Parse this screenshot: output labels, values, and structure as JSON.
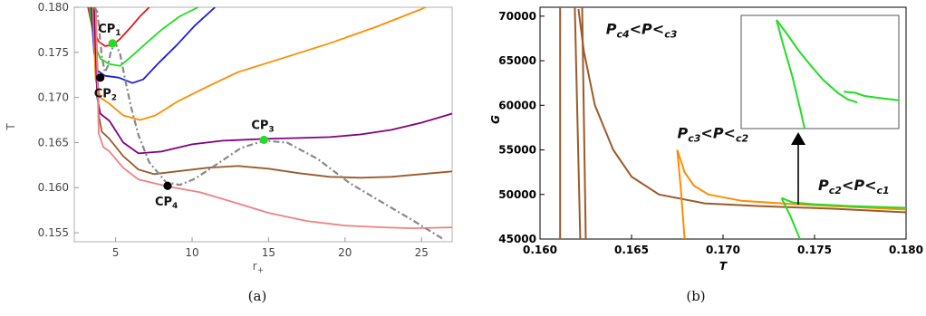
{
  "chart_data": [
    {
      "type": "line",
      "caption": "(a)",
      "xlabel": "r",
      "xlabel_sub": "+",
      "ylabel": "T",
      "xlim": [
        2.3,
        27
      ],
      "ylim": [
        0.154,
        0.18
      ],
      "xticks": [
        "5",
        "10",
        "15",
        "20",
        "25"
      ],
      "yticks": [
        "0.155",
        "0.160",
        "0.165",
        "0.170",
        "0.175",
        "0.180"
      ],
      "series": [
        {
          "color": "#e31a1c",
          "points": [
            [
              3.2,
              0.18
            ],
            [
              3.5,
              0.1775
            ],
            [
              3.9,
              0.1762
            ],
            [
              4.3,
              0.1757
            ],
            [
              4.8,
              0.1758
            ],
            [
              5.3,
              0.1765
            ],
            [
              6.0,
              0.1778
            ],
            [
              6.6,
              0.179
            ],
            [
              7.2,
              0.18
            ]
          ]
        },
        {
          "color": "#22dd22",
          "points": [
            [
              3.3,
              0.18
            ],
            [
              3.6,
              0.176
            ],
            [
              4.0,
              0.1743
            ],
            [
              4.6,
              0.1737
            ],
            [
              5.3,
              0.1735
            ],
            [
              6.0,
              0.1745
            ],
            [
              7.0,
              0.176
            ],
            [
              8.0,
              0.1775
            ],
            [
              9.2,
              0.179
            ],
            [
              10.4,
              0.18
            ]
          ]
        },
        {
          "color": "#1f1fd6",
          "points": [
            [
              3.4,
              0.18
            ],
            [
              3.6,
              0.175
            ],
            [
              3.8,
              0.173
            ],
            [
              4.3,
              0.1724
            ],
            [
              5.2,
              0.1722
            ],
            [
              6.1,
              0.1716
            ],
            [
              6.8,
              0.172
            ],
            [
              7.8,
              0.1738
            ],
            [
              9.0,
              0.1758
            ],
            [
              10.2,
              0.178
            ],
            [
              11.5,
              0.18
            ]
          ]
        },
        {
          "color": "#ff8c00",
          "points": [
            [
              3.5,
              0.18
            ],
            [
              3.7,
              0.172
            ],
            [
              4.0,
              0.17
            ],
            [
              4.6,
              0.1693
            ],
            [
              5.5,
              0.168
            ],
            [
              6.6,
              0.1675
            ],
            [
              7.6,
              0.168
            ],
            [
              9.0,
              0.1695
            ],
            [
              11.0,
              0.1712
            ],
            [
              13.0,
              0.1728
            ],
            [
              16.0,
              0.1744
            ],
            [
              19.0,
              0.176
            ],
            [
              22.0,
              0.1778
            ],
            [
              25.0,
              0.1798
            ],
            [
              25.5,
              0.1802
            ]
          ]
        },
        {
          "color": "#800080",
          "points": [
            [
              3.6,
              0.18
            ],
            [
              3.8,
              0.17
            ],
            [
              4.0,
              0.1682
            ],
            [
              4.6,
              0.1674
            ],
            [
              5.5,
              0.165
            ],
            [
              6.5,
              0.1638
            ],
            [
              8.0,
              0.164
            ],
            [
              10.0,
              0.1648
            ],
            [
              12.0,
              0.1652
            ],
            [
              14.7,
              0.1654
            ],
            [
              17.0,
              0.1655
            ],
            [
              19.0,
              0.1656
            ],
            [
              21.0,
              0.1659
            ],
            [
              23.0,
              0.1664
            ],
            [
              25.0,
              0.1672
            ],
            [
              27.0,
              0.1682
            ]
          ]
        },
        {
          "color": "#9b5a2a",
          "points": [
            [
              3.7,
              0.18
            ],
            [
              3.9,
              0.168
            ],
            [
              4.1,
              0.1662
            ],
            [
              4.6,
              0.1654
            ],
            [
              5.5,
              0.1635
            ],
            [
              6.5,
              0.162
            ],
            [
              7.5,
              0.1615
            ],
            [
              9.0,
              0.1618
            ],
            [
              11.0,
              0.1622
            ],
            [
              13.0,
              0.1624
            ],
            [
              15.0,
              0.1621
            ],
            [
              17.0,
              0.1616
            ],
            [
              19.0,
              0.1612
            ],
            [
              21.0,
              0.1611
            ],
            [
              23.0,
              0.1612
            ],
            [
              25.0,
              0.1615
            ],
            [
              27.0,
              0.1618
            ]
          ]
        },
        {
          "color": "#f08080",
          "points": [
            [
              3.7,
              0.18
            ],
            [
              3.9,
              0.166
            ],
            [
              4.2,
              0.1645
            ],
            [
              4.6,
              0.164
            ],
            [
              5.5,
              0.1622
            ],
            [
              6.5,
              0.1609
            ],
            [
              8.5,
              0.1601
            ],
            [
              10.5,
              0.1595
            ],
            [
              12.5,
              0.1585
            ],
            [
              15.0,
              0.1572
            ],
            [
              17.5,
              0.1563
            ],
            [
              20.0,
              0.1558
            ],
            [
              22.5,
              0.1556
            ],
            [
              24.5,
              0.1555
            ],
            [
              27.0,
              0.1556
            ]
          ]
        },
        {
          "color": "#888888",
          "dashed": true,
          "points": [
            [
              3.6,
              0.18
            ],
            [
              3.8,
              0.1795
            ],
            [
              3.9,
              0.178
            ],
            [
              4.1,
              0.1745
            ],
            [
              4.3,
              0.1728
            ],
            [
              4.5,
              0.1735
            ],
            [
              4.7,
              0.1752
            ],
            [
              5.0,
              0.176
            ],
            [
              5.3,
              0.1748
            ],
            [
              5.6,
              0.1722
            ],
            [
              6.0,
              0.169
            ],
            [
              6.5,
              0.1658
            ],
            [
              7.2,
              0.1628
            ],
            [
              8.3,
              0.1606
            ],
            [
              9.2,
              0.1603
            ],
            [
              10.2,
              0.161
            ],
            [
              11.8,
              0.1628
            ],
            [
              13.2,
              0.1644
            ],
            [
              14.7,
              0.1652
            ],
            [
              16.2,
              0.165
            ],
            [
              18.2,
              0.1632
            ],
            [
              20.3,
              0.1605
            ],
            [
              22.5,
              0.1583
            ],
            [
              24.5,
              0.1563
            ],
            [
              26.5,
              0.1542
            ]
          ]
        }
      ],
      "critical_points": [
        {
          "label": "CP",
          "sub": "1",
          "x": 4.8,
          "y": 0.176,
          "color": "#22dd22"
        },
        {
          "label": "CP",
          "sub": "2",
          "x": 4.0,
          "y": 0.1722,
          "color": "#000000"
        },
        {
          "label": "CP",
          "sub": "3",
          "x": 14.7,
          "y": 0.1653,
          "color": "#22dd22"
        },
        {
          "label": "CP",
          "sub": "4",
          "x": 8.4,
          "y": 0.1602,
          "color": "#000000"
        }
      ]
    },
    {
      "type": "line",
      "caption": "(b)",
      "xlabel": "T",
      "ylabel": "G",
      "xlim": [
        0.16,
        0.18
      ],
      "ylim": [
        45000,
        71000
      ],
      "xticks": [
        "0.160",
        "0.165",
        "0.170",
        "0.175",
        "0.180"
      ],
      "yticks": [
        "45000",
        "50000",
        "55000",
        "60000",
        "65000",
        "70000"
      ],
      "series": [
        {
          "color": "#9b5a2a",
          "points": [
            [
              0.1611,
              45000
            ],
            [
              0.1611,
              71000
            ]
          ]
        },
        {
          "color": "#9b5a2a",
          "points": [
            [
              0.1619,
              71000
            ],
            [
              0.1622,
              45000
            ]
          ]
        },
        {
          "color": "#9b5a2a",
          "points": [
            [
              0.1623,
              71000
            ],
            [
              0.1625,
              45000
            ]
          ]
        },
        {
          "color": "#9b5a2a",
          "points": [
            [
              0.1621,
              70800
            ],
            [
              0.1624,
              66000
            ],
            [
              0.163,
              60000
            ],
            [
              0.164,
              55000
            ],
            [
              0.165,
              52000
            ],
            [
              0.1665,
              50000
            ],
            [
              0.169,
              49000
            ],
            [
              0.172,
              48700
            ],
            [
              0.176,
              48400
            ],
            [
              0.18,
              48000
            ]
          ]
        },
        {
          "color": "#ff8c00",
          "points": [
            [
              0.1675,
              55000
            ],
            [
              0.1679,
              52500
            ],
            [
              0.1684,
              51000
            ],
            [
              0.1692,
              50000
            ],
            [
              0.171,
              49300
            ],
            [
              0.174,
              48900
            ],
            [
              0.178,
              48500
            ],
            [
              0.18,
              48300
            ]
          ]
        },
        {
          "color": "#ff8c00",
          "points": [
            [
              0.1675,
              55000
            ],
            [
              0.1677,
              50500
            ],
            [
              0.1679,
              45000
            ]
          ]
        },
        {
          "color": "#22dd22",
          "points": [
            [
              0.1732,
              49600
            ],
            [
              0.1738,
              49100
            ],
            [
              0.175,
              48900
            ],
            [
              0.177,
              48700
            ],
            [
              0.18,
              48500
            ]
          ]
        },
        {
          "color": "#22dd22",
          "points": [
            [
              0.1732,
              49600
            ],
            [
              0.1737,
              47500
            ],
            [
              0.1742,
              45000
            ]
          ]
        }
      ],
      "annotations": [
        {
          "main": "P",
          "a": "c4",
          "mid": "<P<",
          "pm": "P",
          "b": "c3",
          "x": 0.1636,
          "y": 68000
        },
        {
          "main": "P",
          "a": "c3",
          "mid": "<P<",
          "pm": "P",
          "b": "c2",
          "x": 0.1675,
          "y": 56300
        },
        {
          "main": "P",
          "a": "c2",
          "mid": "<P<",
          "pm": "P",
          "b": "c1",
          "x": 0.1752,
          "y": 50500
        }
      ],
      "inset": {
        "series": [
          {
            "color": "#22dd22",
            "points": [
              [
                0,
                0
              ],
              [
                0.08,
                0.12
              ],
              [
                0.18,
                0.28
              ],
              [
                0.28,
                0.42
              ],
              [
                0.38,
                0.55
              ],
              [
                0.5,
                0.67
              ],
              [
                0.58,
                0.73
              ],
              [
                0.66,
                0.76
              ]
            ]
          },
          {
            "color": "#22dd22",
            "points": [
              [
                0,
                0
              ],
              [
                0.06,
                0.25
              ],
              [
                0.13,
                0.52
              ],
              [
                0.2,
                0.85
              ],
              [
                0.23,
                1.0
              ]
            ]
          },
          {
            "color": "#22dd22",
            "points": [
              [
                0.55,
                0.66
              ],
              [
                0.64,
                0.67
              ],
              [
                0.72,
                0.7
              ],
              [
                0.85,
                0.72
              ],
              [
                1.0,
                0.74
              ]
            ]
          }
        ]
      }
    }
  ]
}
